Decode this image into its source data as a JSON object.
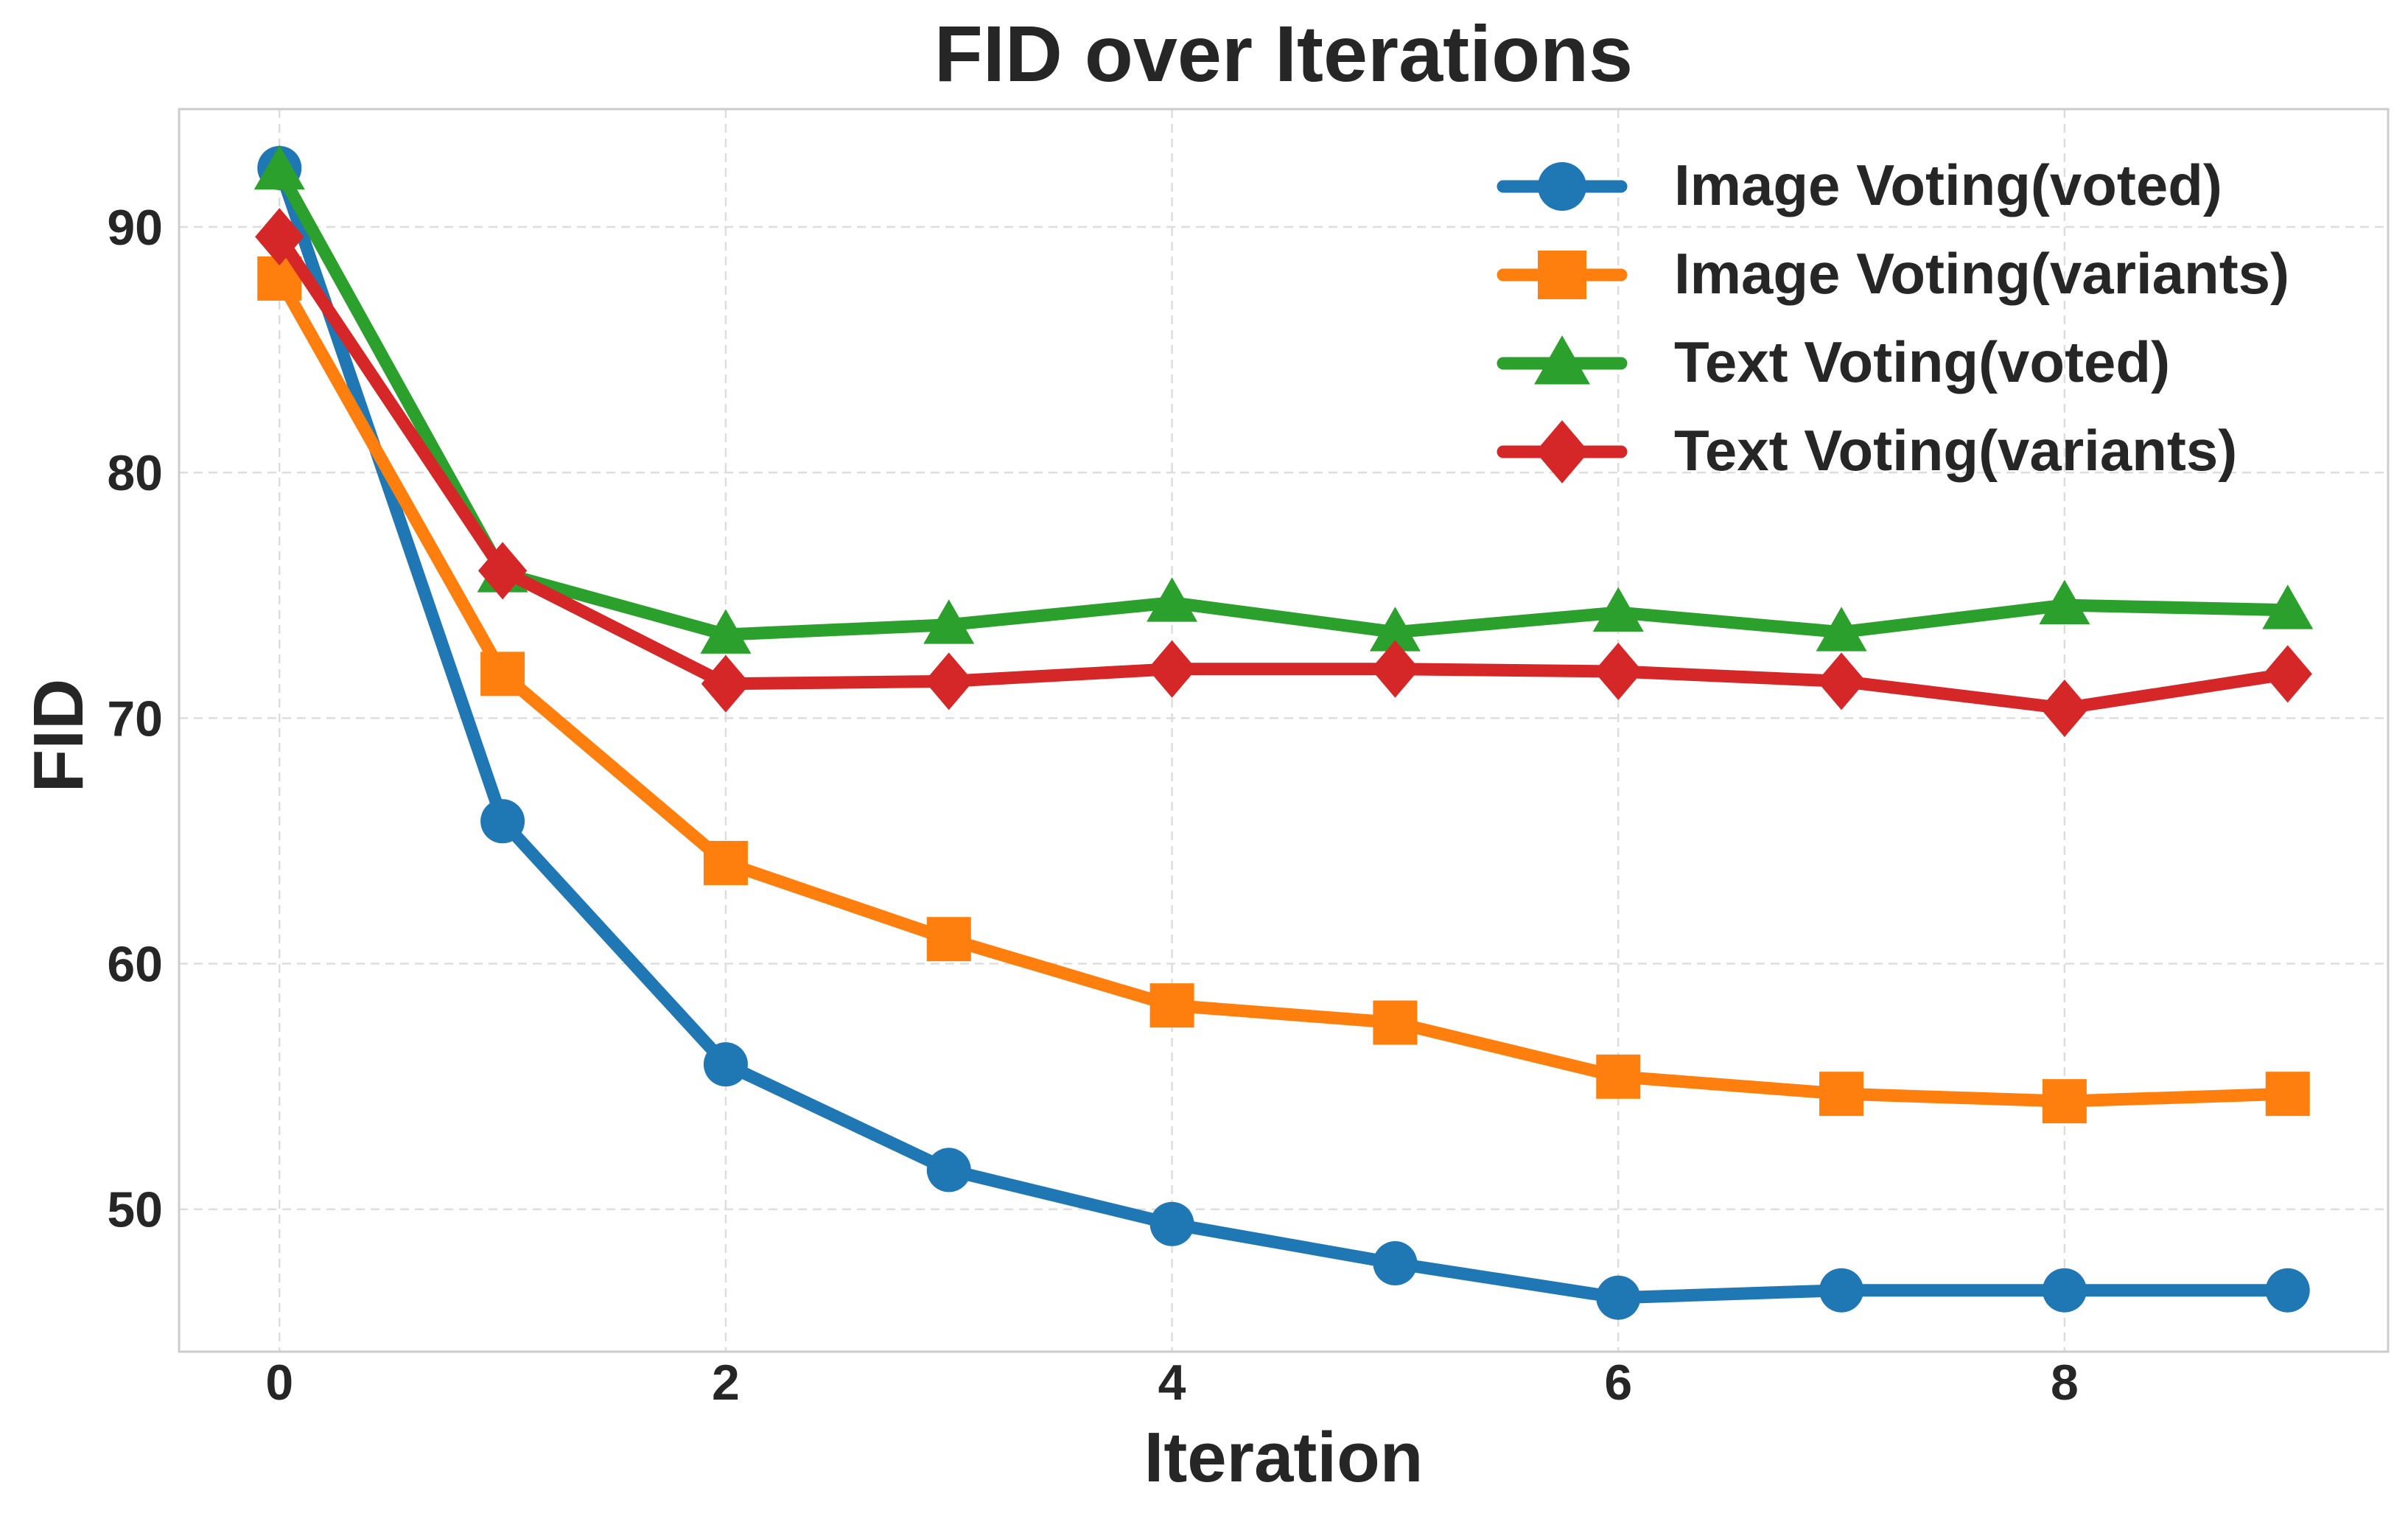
{
  "chart_data": {
    "type": "line",
    "title": "FID over Iterations",
    "xlabel": "Iteration",
    "ylabel": "FID",
    "x": [
      0,
      1,
      2,
      3,
      4,
      5,
      6,
      7,
      8,
      9
    ],
    "xlim": [
      -0.45,
      9.45
    ],
    "ylim": [
      44.2,
      94.8
    ],
    "xticks": [
      0,
      2,
      4,
      6,
      8
    ],
    "yticks": [
      50,
      60,
      70,
      80,
      90
    ],
    "grid": true,
    "legend_position": "top-right",
    "series": [
      {
        "name": "Image Voting(voted)",
        "color": "#1f77b4",
        "marker": "circle",
        "values": [
          92.4,
          65.8,
          55.9,
          51.6,
          49.4,
          47.8,
          46.4,
          46.7,
          46.7,
          46.7
        ]
      },
      {
        "name": "Image Voting(variants)",
        "color": "#ff7f0e",
        "marker": "square",
        "values": [
          87.9,
          71.8,
          64.1,
          61.0,
          58.3,
          57.6,
          55.4,
          54.7,
          54.4,
          54.7
        ]
      },
      {
        "name": "Text Voting(voted)",
        "color": "#2ca02c",
        "marker": "triangle",
        "values": [
          92.3,
          75.9,
          73.4,
          73.8,
          74.7,
          73.5,
          74.3,
          73.5,
          74.6,
          74.4
        ]
      },
      {
        "name": "Text Voting(variants)",
        "color": "#d62728",
        "marker": "diamond",
        "values": [
          89.6,
          76.0,
          71.4,
          71.5,
          72.0,
          72.0,
          71.9,
          71.5,
          70.4,
          71.8
        ]
      }
    ]
  }
}
